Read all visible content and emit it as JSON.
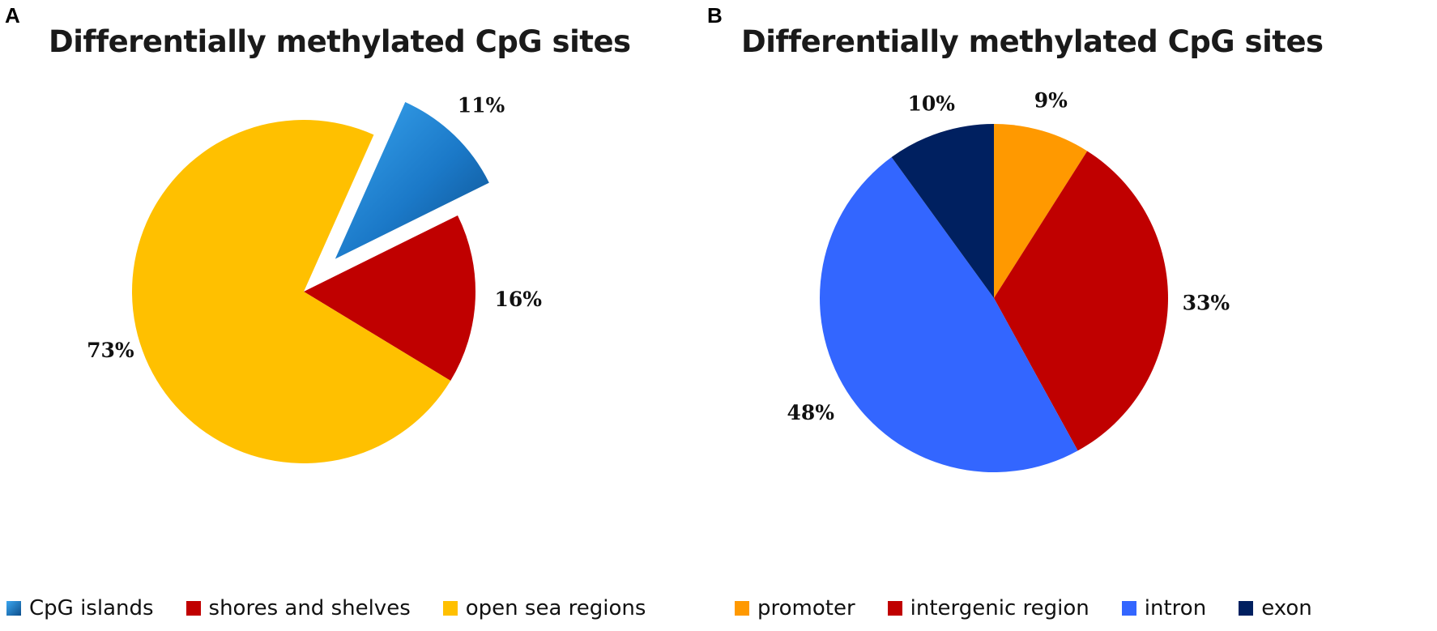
{
  "panels": {
    "a": {
      "letter": "A"
    },
    "b": {
      "letter": "B"
    }
  },
  "chart_data": [
    {
      "type": "pie",
      "title": "Differentially methylated CpG sites",
      "slices": [
        {
          "label": "CpG islands",
          "value": 11,
          "value_label": "11%",
          "color": "#1f7fd0",
          "exploded": true
        },
        {
          "label": "shores and shelves",
          "value": 16,
          "value_label": "16%",
          "color": "#c00000"
        },
        {
          "label": "open sea regions",
          "value": 73,
          "value_label": "73%",
          "color": "#ffc000"
        }
      ],
      "legend_placement": "bottom"
    },
    {
      "type": "pie",
      "title": "Differentially methylated CpG sites",
      "slices": [
        {
          "label": "promoter",
          "value": 9,
          "value_label": "9%",
          "color": "#ff9900"
        },
        {
          "label": "intergenic region",
          "value": 33,
          "value_label": "33%",
          "color": "#c00000"
        },
        {
          "label": "intron",
          "value": 48,
          "value_label": "48%",
          "color": "#3366ff"
        },
        {
          "label": "exon",
          "value": 10,
          "value_label": "10%",
          "color": "#002060"
        }
      ],
      "legend_placement": "bottom"
    }
  ]
}
